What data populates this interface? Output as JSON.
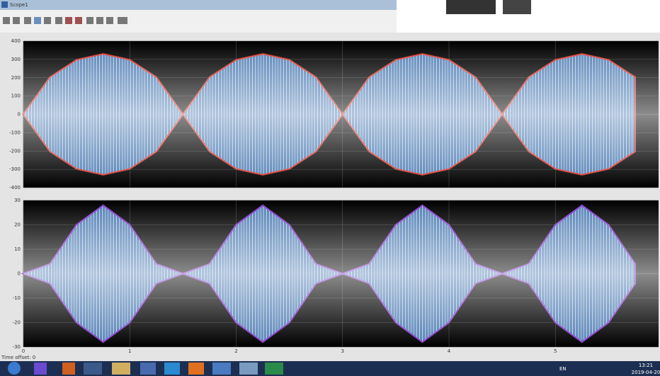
{
  "window": {
    "title": "Scope1",
    "status": "Time offset: 0"
  },
  "plots": [
    {
      "ylim": [
        -400,
        400
      ],
      "yticks": [
        -400,
        -300,
        -200,
        -100,
        0,
        100,
        200,
        300,
        400
      ],
      "xlim": [
        0,
        5.97
      ],
      "xticks": [
        0,
        1,
        2,
        3,
        4,
        5
      ],
      "grid": true,
      "color": "#e03a30",
      "x": [
        0,
        0.25,
        0.5,
        0.75,
        1,
        1.25,
        1.5,
        1.75,
        2,
        2.25,
        2.5,
        2.75,
        3,
        3.25,
        3.5,
        3.75,
        4,
        4.25,
        4.5,
        4.75,
        5,
        5.25,
        5.5,
        5.75
      ],
      "envelope": [
        0,
        203,
        298,
        330,
        298,
        203,
        0,
        203,
        298,
        330,
        298,
        203,
        0,
        203,
        298,
        330,
        298,
        203,
        0,
        203,
        298,
        330,
        298,
        203
      ]
    },
    {
      "ylim": [
        -30,
        30
      ],
      "yticks": [
        -30,
        -20,
        -10,
        0,
        10,
        20,
        30
      ],
      "xlim": [
        0,
        5.97
      ],
      "xticks": [
        0,
        1,
        2,
        3,
        4,
        5
      ],
      "grid": true,
      "color": "#8a3ad0",
      "x": [
        0,
        0.25,
        0.5,
        0.75,
        1,
        1.25,
        1.5,
        1.75,
        2,
        2.25,
        2.5,
        2.75,
        3,
        3.25,
        3.5,
        3.75,
        4,
        4.25,
        4.5,
        4.75,
        5,
        5.25,
        5.5,
        5.75
      ],
      "envelope": [
        0,
        4,
        20,
        28,
        20,
        4,
        0,
        4,
        20,
        28,
        20,
        4,
        0,
        4,
        20,
        28,
        20,
        4,
        0,
        4,
        20,
        28,
        20,
        4
      ]
    }
  ],
  "taskbar": {
    "language": "EN",
    "time": "13:21",
    "date": "2019-04-20"
  }
}
